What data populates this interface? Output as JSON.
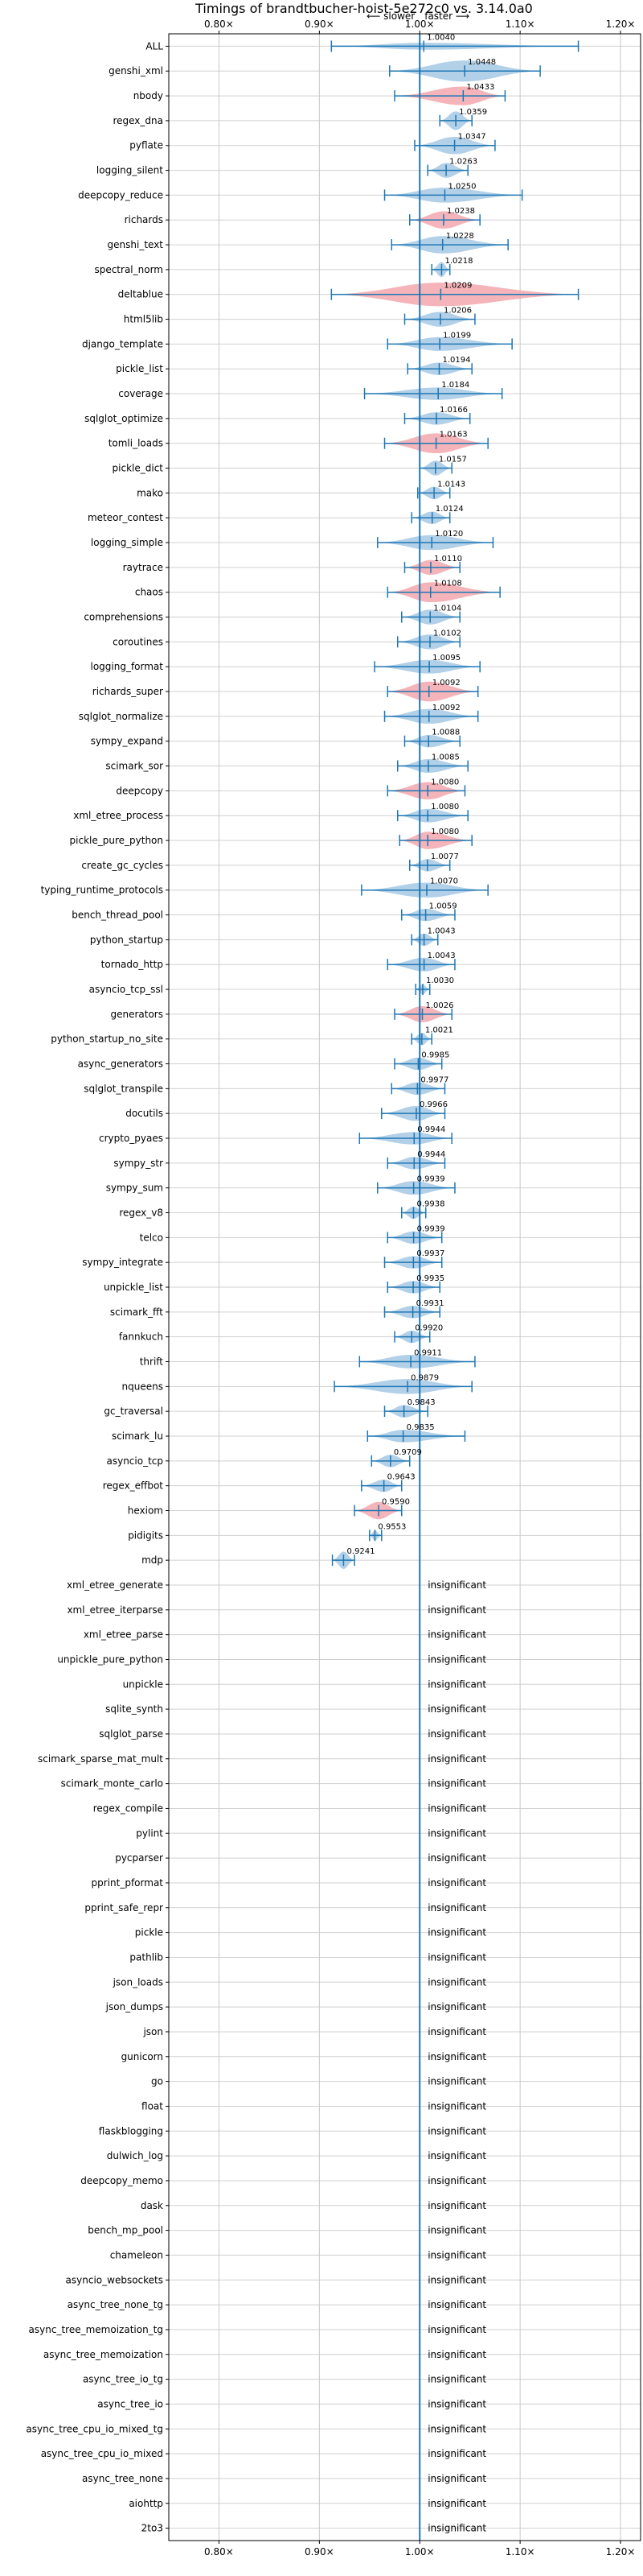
{
  "chart_data": {
    "type": "violin",
    "title": "Timings of brandtbucher-hoist-5e272c0 vs. 3.14.0a0",
    "direction_slower": "⟵ slower",
    "direction_faster": "faster ⟶",
    "xlim": [
      0.75,
      1.22
    ],
    "x_ticks": [
      0.8,
      0.9,
      1.0,
      1.1,
      1.2
    ],
    "x_tick_labels": [
      "0.80×",
      "0.90×",
      "1.00×",
      "1.10×",
      "1.20×"
    ],
    "reference_line": 1.0,
    "grid": true,
    "colors": {
      "faster": "#a5c8e4",
      "slower": "#f2a7ad",
      "whisker": "#1f77b4",
      "reference": "#1f77b4"
    },
    "insignificant_label": "insignificant",
    "benchmarks": [
      {
        "name": "ALL",
        "value": 1.004,
        "label": "1.0040",
        "lo": 0.912,
        "hi": 1.158,
        "width": 0.28,
        "color": "faster"
      },
      {
        "name": "genshi_xml",
        "value": 1.0448,
        "label": "1.0448",
        "lo": 0.97,
        "hi": 1.12,
        "width": 0.85,
        "color": "faster"
      },
      {
        "name": "nbody",
        "value": 1.0433,
        "label": "1.0433",
        "lo": 0.975,
        "hi": 1.085,
        "width": 0.75,
        "color": "slower"
      },
      {
        "name": "regex_dna",
        "value": 1.0359,
        "label": "1.0359",
        "lo": 1.02,
        "hi": 1.052,
        "width": 0.75,
        "color": "faster"
      },
      {
        "name": "pyflate",
        "value": 1.0347,
        "label": "1.0347",
        "lo": 0.995,
        "hi": 1.075,
        "width": 0.7,
        "color": "faster"
      },
      {
        "name": "logging_silent",
        "value": 1.0263,
        "label": "1.0263",
        "lo": 1.008,
        "hi": 1.048,
        "width": 0.6,
        "color": "faster"
      },
      {
        "name": "deepcopy_reduce",
        "value": 1.025,
        "label": "1.0250",
        "lo": 0.965,
        "hi": 1.102,
        "width": 0.6,
        "color": "faster"
      },
      {
        "name": "richards",
        "value": 1.0238,
        "label": "1.0238",
        "lo": 0.99,
        "hi": 1.06,
        "width": 0.7,
        "color": "slower"
      },
      {
        "name": "genshi_text",
        "value": 1.0228,
        "label": "1.0228",
        "lo": 0.972,
        "hi": 1.088,
        "width": 0.7,
        "color": "faster"
      },
      {
        "name": "spectral_norm",
        "value": 1.0218,
        "label": "1.0218",
        "lo": 1.012,
        "hi": 1.03,
        "width": 0.6,
        "color": "faster"
      },
      {
        "name": "deltablue",
        "value": 1.0209,
        "label": "1.0209",
        "lo": 0.912,
        "hi": 1.158,
        "width": 0.95,
        "color": "slower"
      },
      {
        "name": "html5lib",
        "value": 1.0206,
        "label": "1.0206",
        "lo": 0.985,
        "hi": 1.055,
        "width": 0.6,
        "color": "faster"
      },
      {
        "name": "django_template",
        "value": 1.0199,
        "label": "1.0199",
        "lo": 0.968,
        "hi": 1.092,
        "width": 0.55,
        "color": "faster"
      },
      {
        "name": "pickle_list",
        "value": 1.0194,
        "label": "1.0194",
        "lo": 0.988,
        "hi": 1.052,
        "width": 0.5,
        "color": "faster"
      },
      {
        "name": "coverage",
        "value": 1.0184,
        "label": "1.0184",
        "lo": 0.945,
        "hi": 1.082,
        "width": 0.5,
        "color": "faster"
      },
      {
        "name": "sqlglot_optimize",
        "value": 1.0166,
        "label": "1.0166",
        "lo": 0.985,
        "hi": 1.05,
        "width": 0.5,
        "color": "faster"
      },
      {
        "name": "tomli_loads",
        "value": 1.0163,
        "label": "1.0163",
        "lo": 0.965,
        "hi": 1.068,
        "width": 0.8,
        "color": "slower"
      },
      {
        "name": "pickle_dict",
        "value": 1.0157,
        "label": "1.0157",
        "lo": 1.0,
        "hi": 1.032,
        "width": 0.6,
        "color": "faster"
      },
      {
        "name": "mako",
        "value": 1.0143,
        "label": "1.0143",
        "lo": 0.998,
        "hi": 1.03,
        "width": 0.5,
        "color": "faster"
      },
      {
        "name": "meteor_contest",
        "value": 1.0124,
        "label": "1.0124",
        "lo": 0.992,
        "hi": 1.03,
        "width": 0.5,
        "color": "faster"
      },
      {
        "name": "logging_simple",
        "value": 1.012,
        "label": "1.0120",
        "lo": 0.958,
        "hi": 1.073,
        "width": 0.6,
        "color": "faster"
      },
      {
        "name": "raytrace",
        "value": 1.011,
        "label": "1.0110",
        "lo": 0.985,
        "hi": 1.04,
        "width": 0.6,
        "color": "slower"
      },
      {
        "name": "chaos",
        "value": 1.0108,
        "label": "1.0108",
        "lo": 0.968,
        "hi": 1.08,
        "width": 0.8,
        "color": "slower"
      },
      {
        "name": "comprehensions",
        "value": 1.0104,
        "label": "1.0104",
        "lo": 0.982,
        "hi": 1.04,
        "width": 0.6,
        "color": "faster"
      },
      {
        "name": "coroutines",
        "value": 1.0102,
        "label": "1.0102",
        "lo": 0.978,
        "hi": 1.04,
        "width": 0.6,
        "color": "faster"
      },
      {
        "name": "logging_format",
        "value": 1.0095,
        "label": "1.0095",
        "lo": 0.955,
        "hi": 1.06,
        "width": 0.55,
        "color": "faster"
      },
      {
        "name": "richards_super",
        "value": 1.0092,
        "label": "1.0092",
        "lo": 0.968,
        "hi": 1.058,
        "width": 0.8,
        "color": "slower"
      },
      {
        "name": "sqlglot_normalize",
        "value": 1.0092,
        "label": "1.0092",
        "lo": 0.965,
        "hi": 1.058,
        "width": 0.6,
        "color": "faster"
      },
      {
        "name": "sympy_expand",
        "value": 1.0088,
        "label": "1.0088",
        "lo": 0.985,
        "hi": 1.04,
        "width": 0.5,
        "color": "faster"
      },
      {
        "name": "scimark_sor",
        "value": 1.0085,
        "label": "1.0085",
        "lo": 0.978,
        "hi": 1.048,
        "width": 0.55,
        "color": "faster"
      },
      {
        "name": "deepcopy",
        "value": 1.008,
        "label": "1.0080",
        "lo": 0.968,
        "hi": 1.045,
        "width": 0.7,
        "color": "slower"
      },
      {
        "name": "xml_etree_process",
        "value": 1.008,
        "label": "1.0080",
        "lo": 0.978,
        "hi": 1.048,
        "width": 0.55,
        "color": "faster"
      },
      {
        "name": "pickle_pure_python",
        "value": 1.008,
        "label": "1.0080",
        "lo": 0.98,
        "hi": 1.052,
        "width": 0.7,
        "color": "slower"
      },
      {
        "name": "create_gc_cycles",
        "value": 1.0077,
        "label": "1.0077",
        "lo": 0.99,
        "hi": 1.03,
        "width": 0.5,
        "color": "faster"
      },
      {
        "name": "typing_runtime_protocols",
        "value": 1.007,
        "label": "1.0070",
        "lo": 0.942,
        "hi": 1.068,
        "width": 0.6,
        "color": "faster"
      },
      {
        "name": "bench_thread_pool",
        "value": 1.0059,
        "label": "1.0059",
        "lo": 0.982,
        "hi": 1.035,
        "width": 0.5,
        "color": "faster"
      },
      {
        "name": "python_startup",
        "value": 1.0043,
        "label": "1.0043",
        "lo": 0.992,
        "hi": 1.018,
        "width": 0.5,
        "color": "faster"
      },
      {
        "name": "tornado_http",
        "value": 1.0043,
        "label": "1.0043",
        "lo": 0.968,
        "hi": 1.035,
        "width": 0.55,
        "color": "faster"
      },
      {
        "name": "asyncio_tcp_ssl",
        "value": 1.003,
        "label": "1.0030",
        "lo": 0.996,
        "hi": 1.01,
        "width": 0.4,
        "color": "faster"
      },
      {
        "name": "generators",
        "value": 1.0026,
        "label": "1.0026",
        "lo": 0.975,
        "hi": 1.032,
        "width": 0.65,
        "color": "slower"
      },
      {
        "name": "python_startup_no_site",
        "value": 1.0021,
        "label": "1.0021",
        "lo": 0.992,
        "hi": 1.012,
        "width": 0.5,
        "color": "faster"
      },
      {
        "name": "async_generators",
        "value": 0.9985,
        "label": "0.9985",
        "lo": 0.975,
        "hi": 1.022,
        "width": 0.5,
        "color": "faster"
      },
      {
        "name": "sqlglot_transpile",
        "value": 0.9977,
        "label": "0.9977",
        "lo": 0.972,
        "hi": 1.025,
        "width": 0.5,
        "color": "faster"
      },
      {
        "name": "docutils",
        "value": 0.9966,
        "label": "0.9966",
        "lo": 0.962,
        "hi": 1.025,
        "width": 0.6,
        "color": "faster"
      },
      {
        "name": "crypto_pyaes",
        "value": 0.9944,
        "label": "0.9944",
        "lo": 0.94,
        "hi": 1.032,
        "width": 0.5,
        "color": "faster"
      },
      {
        "name": "sympy_str",
        "value": 0.9944,
        "label": "0.9944",
        "lo": 0.968,
        "hi": 1.025,
        "width": 0.5,
        "color": "faster"
      },
      {
        "name": "sympy_sum",
        "value": 0.9939,
        "label": "0.9939",
        "lo": 0.958,
        "hi": 1.035,
        "width": 0.55,
        "color": "faster"
      },
      {
        "name": "regex_v8",
        "value": 0.9938,
        "label": "0.9938",
        "lo": 0.982,
        "hi": 1.006,
        "width": 0.5,
        "color": "faster"
      },
      {
        "name": "telco",
        "value": 0.9939,
        "label": "0.9939",
        "lo": 0.968,
        "hi": 1.022,
        "width": 0.5,
        "color": "faster"
      },
      {
        "name": "sympy_integrate",
        "value": 0.9937,
        "label": "0.9937",
        "lo": 0.965,
        "hi": 1.022,
        "width": 0.5,
        "color": "faster"
      },
      {
        "name": "unpickle_list",
        "value": 0.9935,
        "label": "0.9935",
        "lo": 0.968,
        "hi": 1.02,
        "width": 0.5,
        "color": "faster"
      },
      {
        "name": "scimark_fft",
        "value": 0.9931,
        "label": "0.9931",
        "lo": 0.965,
        "hi": 1.02,
        "width": 0.5,
        "color": "faster"
      },
      {
        "name": "fannkuch",
        "value": 0.992,
        "label": "0.9920",
        "lo": 0.975,
        "hi": 1.01,
        "width": 0.5,
        "color": "faster"
      },
      {
        "name": "thrift",
        "value": 0.9911,
        "label": "0.9911",
        "lo": 0.94,
        "hi": 1.055,
        "width": 0.55,
        "color": "faster"
      },
      {
        "name": "nqueens",
        "value": 0.9879,
        "label": "0.9879",
        "lo": 0.915,
        "hi": 1.052,
        "width": 0.6,
        "color": "faster"
      },
      {
        "name": "gc_traversal",
        "value": 0.9843,
        "label": "0.9843",
        "lo": 0.965,
        "hi": 1.008,
        "width": 0.5,
        "color": "faster"
      },
      {
        "name": "scimark_lu",
        "value": 0.9835,
        "label": "0.9835",
        "lo": 0.948,
        "hi": 1.045,
        "width": 0.5,
        "color": "faster"
      },
      {
        "name": "asyncio_tcp",
        "value": 0.9709,
        "label": "0.9709",
        "lo": 0.952,
        "hi": 0.99,
        "width": 0.5,
        "color": "faster"
      },
      {
        "name": "regex_effbot",
        "value": 0.9643,
        "label": "0.9643",
        "lo": 0.942,
        "hi": 0.982,
        "width": 0.5,
        "color": "faster"
      },
      {
        "name": "hexiom",
        "value": 0.959,
        "label": "0.9590",
        "lo": 0.935,
        "hi": 0.982,
        "width": 0.7,
        "color": "slower"
      },
      {
        "name": "pidigits",
        "value": 0.9553,
        "label": "0.9553",
        "lo": 0.95,
        "hi": 0.962,
        "width": 0.4,
        "color": "faster"
      },
      {
        "name": "mdp",
        "value": 0.9241,
        "label": "0.9241",
        "lo": 0.913,
        "hi": 0.935,
        "width": 0.7,
        "color": "faster"
      },
      {
        "name": "xml_etree_generate",
        "insignificant": true
      },
      {
        "name": "xml_etree_iterparse",
        "insignificant": true
      },
      {
        "name": "xml_etree_parse",
        "insignificant": true
      },
      {
        "name": "unpickle_pure_python",
        "insignificant": true
      },
      {
        "name": "unpickle",
        "insignificant": true
      },
      {
        "name": "sqlite_synth",
        "insignificant": true
      },
      {
        "name": "sqlglot_parse",
        "insignificant": true
      },
      {
        "name": "scimark_sparse_mat_mult",
        "insignificant": true
      },
      {
        "name": "scimark_monte_carlo",
        "insignificant": true
      },
      {
        "name": "regex_compile",
        "insignificant": true
      },
      {
        "name": "pylint",
        "insignificant": true
      },
      {
        "name": "pycparser",
        "insignificant": true
      },
      {
        "name": "pprint_pformat",
        "insignificant": true
      },
      {
        "name": "pprint_safe_repr",
        "insignificant": true
      },
      {
        "name": "pickle",
        "insignificant": true
      },
      {
        "name": "pathlib",
        "insignificant": true
      },
      {
        "name": "json_loads",
        "insignificant": true
      },
      {
        "name": "json_dumps",
        "insignificant": true
      },
      {
        "name": "json",
        "insignificant": true
      },
      {
        "name": "gunicorn",
        "insignificant": true
      },
      {
        "name": "go",
        "insignificant": true
      },
      {
        "name": "float",
        "insignificant": true
      },
      {
        "name": "flaskblogging",
        "insignificant": true
      },
      {
        "name": "dulwich_log",
        "insignificant": true
      },
      {
        "name": "deepcopy_memo",
        "insignificant": true
      },
      {
        "name": "dask",
        "insignificant": true
      },
      {
        "name": "bench_mp_pool",
        "insignificant": true
      },
      {
        "name": "chameleon",
        "insignificant": true
      },
      {
        "name": "asyncio_websockets",
        "insignificant": true
      },
      {
        "name": "async_tree_none_tg",
        "insignificant": true
      },
      {
        "name": "async_tree_memoization_tg",
        "insignificant": true
      },
      {
        "name": "async_tree_memoization",
        "insignificant": true
      },
      {
        "name": "async_tree_io_tg",
        "insignificant": true
      },
      {
        "name": "async_tree_io",
        "insignificant": true
      },
      {
        "name": "async_tree_cpu_io_mixed_tg",
        "insignificant": true
      },
      {
        "name": "async_tree_cpu_io_mixed",
        "insignificant": true
      },
      {
        "name": "async_tree_none",
        "insignificant": true
      },
      {
        "name": "aiohttp",
        "insignificant": true
      },
      {
        "name": "2to3",
        "insignificant": true
      }
    ]
  }
}
